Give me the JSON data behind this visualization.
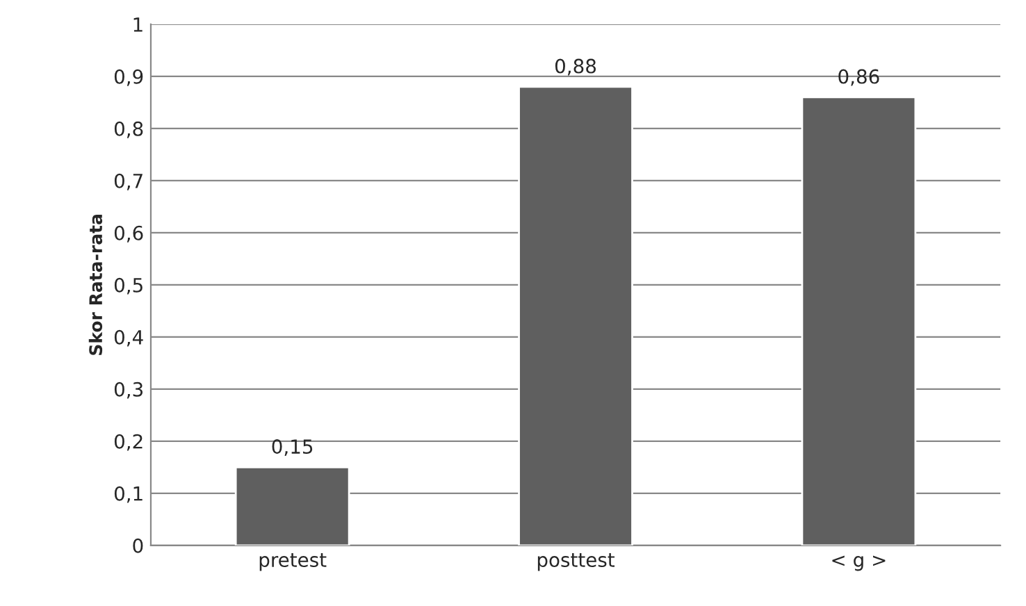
{
  "chart_data": {
    "type": "bar",
    "ylabel": "Skor Rata-rata",
    "categories": [
      "pretest",
      "posttest",
      "< g >"
    ],
    "values": [
      0.15,
      0.88,
      0.86
    ],
    "color": "#5f5f5f",
    "value_labels": [
      "0,15",
      "0,88",
      "0,86"
    ],
    "ylim": [
      0,
      1
    ],
    "yticks": [
      {
        "value": 0,
        "label": "0"
      },
      {
        "value": 0.1,
        "label": "0,1"
      },
      {
        "value": 0.2,
        "label": "0,2"
      },
      {
        "value": 0.3,
        "label": "0,3"
      },
      {
        "value": 0.4,
        "label": "0,4"
      },
      {
        "value": 0.5,
        "label": "0,5"
      },
      {
        "value": 0.6,
        "label": "0,6"
      },
      {
        "value": 0.7,
        "label": "0,7"
      },
      {
        "value": 0.8,
        "label": "0,8"
      },
      {
        "value": 0.9,
        "label": "0,9"
      },
      {
        "value": 1,
        "label": "1"
      }
    ],
    "grid": "y",
    "legend": false
  }
}
